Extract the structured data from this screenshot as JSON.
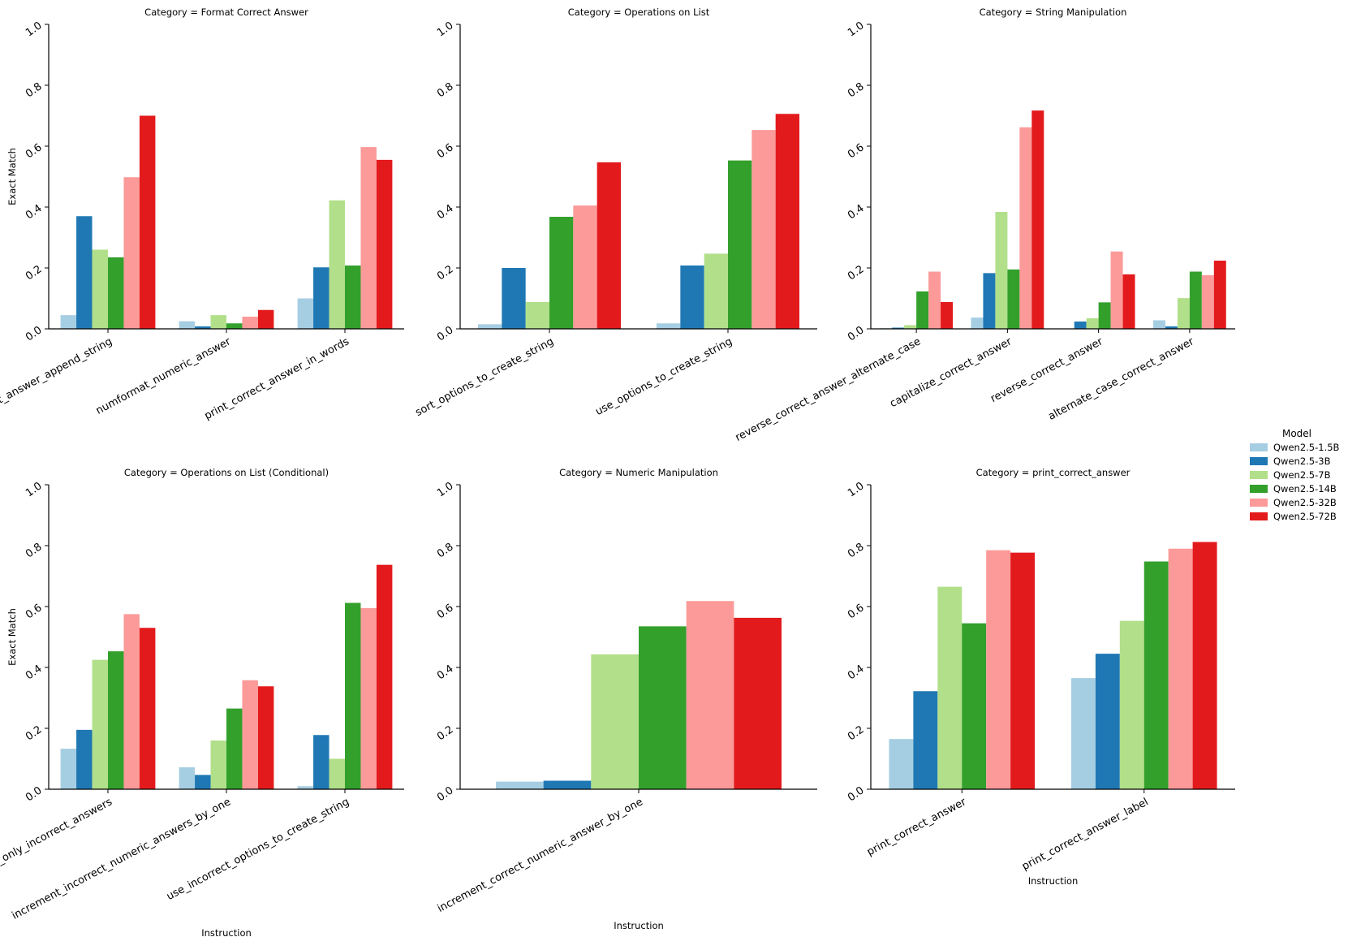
{
  "models": [
    "Qwen2.5-1.5B",
    "Qwen2.5-3B",
    "Qwen2.5-7B",
    "Qwen2.5-14B",
    "Qwen2.5-32B",
    "Qwen2.5-72B"
  ],
  "colors": [
    "#a6cee3",
    "#1f78b4",
    "#b2df8a",
    "#33a02c",
    "#fb9a99",
    "#e31a1c"
  ],
  "legend_title": "Model",
  "ylabel": "Exact Match",
  "xlabel": "Instruction",
  "chart_data": [
    {
      "type": "bar",
      "title": "Category = Format Correct Answer",
      "ylim": [
        0,
        1
      ],
      "yticks": [
        "0.0",
        "0.2",
        "0.4",
        "0.6",
        "0.8",
        "1.0"
      ],
      "categories": [
        "print_correct_answer_append_string",
        "numformat_numeric_answer",
        "print_correct_answer_in_words"
      ],
      "series": [
        {
          "name": "Qwen2.5-1.5B",
          "values": [
            0.045,
            0.025,
            0.1
          ]
        },
        {
          "name": "Qwen2.5-3B",
          "values": [
            0.37,
            0.008,
            0.202
          ]
        },
        {
          "name": "Qwen2.5-7B",
          "values": [
            0.26,
            0.045,
            0.422
          ]
        },
        {
          "name": "Qwen2.5-14B",
          "values": [
            0.235,
            0.018,
            0.208
          ]
        },
        {
          "name": "Qwen2.5-32B",
          "values": [
            0.498,
            0.04,
            0.597
          ]
        },
        {
          "name": "Qwen2.5-72B",
          "values": [
            0.7,
            0.062,
            0.555
          ]
        }
      ]
    },
    {
      "type": "bar",
      "title": "Category = Operations on List",
      "ylim": [
        0,
        1
      ],
      "yticks": [
        "0.0",
        "0.2",
        "0.4",
        "0.6",
        "0.8",
        "1.0"
      ],
      "categories": [
        "sort_options_to_create_string",
        "use_options_to_create_string"
      ],
      "series": [
        {
          "name": "Qwen2.5-1.5B",
          "values": [
            0.015,
            0.018
          ]
        },
        {
          "name": "Qwen2.5-3B",
          "values": [
            0.2,
            0.208
          ]
        },
        {
          "name": "Qwen2.5-7B",
          "values": [
            0.088,
            0.247
          ]
        },
        {
          "name": "Qwen2.5-14B",
          "values": [
            0.368,
            0.553
          ]
        },
        {
          "name": "Qwen2.5-32B",
          "values": [
            0.405,
            0.653
          ]
        },
        {
          "name": "Qwen2.5-72B",
          "values": [
            0.547,
            0.706
          ]
        }
      ]
    },
    {
      "type": "bar",
      "title": "Category = String Manipulation",
      "ylim": [
        0,
        1
      ],
      "yticks": [
        "0.0",
        "0.2",
        "0.4",
        "0.6",
        "0.8",
        "1.0"
      ],
      "categories": [
        "reverse_correct_answer_alternate_case",
        "capitalize_correct_answer",
        "reverse_correct_answer",
        "alternate_case_correct_answer"
      ],
      "series": [
        {
          "name": "Qwen2.5-1.5B",
          "values": [
            0.002,
            0.037,
            0.0,
            0.028
          ]
        },
        {
          "name": "Qwen2.5-3B",
          "values": [
            0.004,
            0.183,
            0.024,
            0.008
          ]
        },
        {
          "name": "Qwen2.5-7B",
          "values": [
            0.012,
            0.384,
            0.035,
            0.101
          ]
        },
        {
          "name": "Qwen2.5-14B",
          "values": [
            0.123,
            0.195,
            0.087,
            0.188
          ]
        },
        {
          "name": "Qwen2.5-32B",
          "values": [
            0.188,
            0.662,
            0.254,
            0.176
          ]
        },
        {
          "name": "Qwen2.5-72B",
          "values": [
            0.088,
            0.717,
            0.179,
            0.224
          ]
        }
      ]
    },
    {
      "type": "bar",
      "title": "Category = Operations on List (Conditional)",
      "ylim": [
        0,
        1
      ],
      "yticks": [
        "0.0",
        "0.2",
        "0.4",
        "0.6",
        "0.8",
        "1.0"
      ],
      "categories": [
        "sort_only_incorrect_answers",
        "increment_incorrect_numeric_answers_by_one",
        "use_incorrect_options_to_create_string"
      ],
      "series": [
        {
          "name": "Qwen2.5-1.5B",
          "values": [
            0.133,
            0.072,
            0.01
          ]
        },
        {
          "name": "Qwen2.5-3B",
          "values": [
            0.195,
            0.047,
            0.178
          ]
        },
        {
          "name": "Qwen2.5-7B",
          "values": [
            0.425,
            0.16,
            0.1
          ]
        },
        {
          "name": "Qwen2.5-14B",
          "values": [
            0.453,
            0.265,
            0.612
          ]
        },
        {
          "name": "Qwen2.5-32B",
          "values": [
            0.575,
            0.358,
            0.595
          ]
        },
        {
          "name": "Qwen2.5-72B",
          "values": [
            0.53,
            0.338,
            0.737
          ]
        }
      ]
    },
    {
      "type": "bar",
      "title": "Category = Numeric Manipulation",
      "ylim": [
        0,
        1
      ],
      "yticks": [
        "0.0",
        "0.2",
        "0.4",
        "0.6",
        "0.8",
        "1.0"
      ],
      "categories": [
        "increment_correct_numeric_answer_by_one"
      ],
      "series": [
        {
          "name": "Qwen2.5-1.5B",
          "values": [
            0.025
          ]
        },
        {
          "name": "Qwen2.5-3B",
          "values": [
            0.028
          ]
        },
        {
          "name": "Qwen2.5-7B",
          "values": [
            0.443
          ]
        },
        {
          "name": "Qwen2.5-14B",
          "values": [
            0.535
          ]
        },
        {
          "name": "Qwen2.5-32B",
          "values": [
            0.618
          ]
        },
        {
          "name": "Qwen2.5-72B",
          "values": [
            0.563
          ]
        }
      ]
    },
    {
      "type": "bar",
      "title": "Category = print_correct_answer",
      "ylim": [
        0,
        1
      ],
      "yticks": [
        "0.0",
        "0.2",
        "0.4",
        "0.6",
        "0.8",
        "1.0"
      ],
      "categories": [
        "print_correct_answer",
        "print_correct_answer_label"
      ],
      "series": [
        {
          "name": "Qwen2.5-1.5B",
          "values": [
            0.165,
            0.365
          ]
        },
        {
          "name": "Qwen2.5-3B",
          "values": [
            0.322,
            0.445
          ]
        },
        {
          "name": "Qwen2.5-7B",
          "values": [
            0.665,
            0.553
          ]
        },
        {
          "name": "Qwen2.5-14B",
          "values": [
            0.545,
            0.748
          ]
        },
        {
          "name": "Qwen2.5-32B",
          "values": [
            0.785,
            0.79
          ]
        },
        {
          "name": "Qwen2.5-72B",
          "values": [
            0.777,
            0.812
          ]
        }
      ]
    }
  ]
}
